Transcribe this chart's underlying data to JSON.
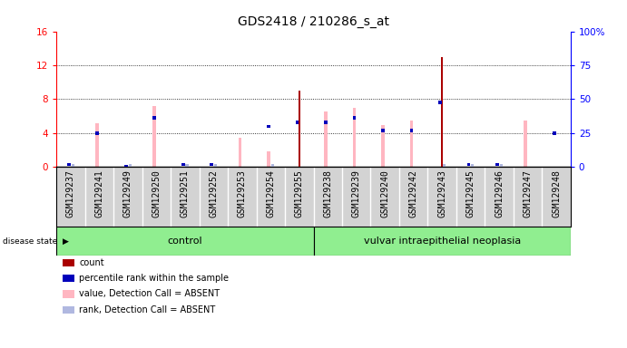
{
  "title": "GDS2418 / 210286_s_at",
  "samples": [
    "GSM129237",
    "GSM129241",
    "GSM129249",
    "GSM129250",
    "GSM129251",
    "GSM129252",
    "GSM129253",
    "GSM129254",
    "GSM129255",
    "GSM129238",
    "GSM129239",
    "GSM129240",
    "GSM129242",
    "GSM129243",
    "GSM129245",
    "GSM129246",
    "GSM129247",
    "GSM129248"
  ],
  "control_count": 9,
  "disease_group": "vulvar intraepithelial neoplasia",
  "control_group": "control",
  "ylim_left": [
    0,
    16
  ],
  "ylim_right": [
    0,
    100
  ],
  "yticks_left": [
    0,
    4,
    8,
    12,
    16
  ],
  "yticks_right": [
    0,
    25,
    50,
    75,
    100
  ],
  "count_values": [
    0,
    0,
    0,
    0,
    0,
    0,
    0,
    0,
    9.0,
    0,
    0,
    0,
    0,
    13.0,
    0,
    0,
    0,
    0
  ],
  "percentile_values": [
    0.5,
    4.2,
    0.2,
    6.0,
    0.5,
    0.5,
    0,
    5.0,
    5.5,
    5.5,
    6.0,
    4.5,
    4.5,
    7.8,
    0.5,
    0.5,
    0,
    4.2
  ],
  "value_absent": [
    0,
    5.2,
    0,
    7.2,
    0,
    0,
    3.5,
    1.8,
    0,
    6.5,
    7.0,
    5.0,
    5.5,
    0,
    0,
    0,
    5.5,
    0
  ],
  "rank_absent": [
    0.5,
    0,
    0.2,
    0,
    0.5,
    0.5,
    0,
    0.5,
    0,
    0,
    0,
    0,
    0,
    0.5,
    0.5,
    0.5,
    0,
    0
  ],
  "bar_bg_color": "#d3d3d3",
  "count_color": "#aa0000",
  "percentile_color": "#0000bb",
  "value_absent_color": "#ffb6c1",
  "rank_absent_color": "#b0b8e0",
  "green_bg": "#90ee90",
  "title_fontsize": 10,
  "label_fontsize": 7,
  "tick_fontsize": 7.5
}
